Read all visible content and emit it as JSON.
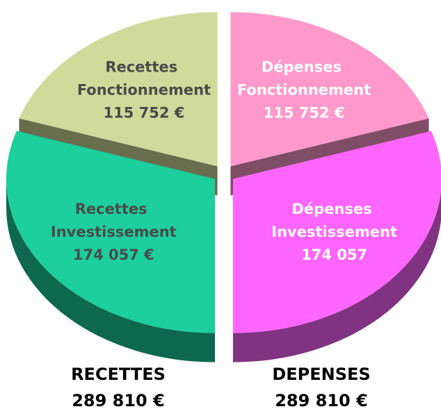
{
  "chart_data": {
    "type": "pie",
    "categories": [
      "Dépenses Fonctionnement",
      "Dépenses Investissement",
      "Recettes Investissement",
      "Recettes Fonctionnement"
    ],
    "values": [
      115752,
      174057,
      174057,
      115752
    ],
    "value_labels": [
      "115 752 €",
      "174 057",
      "174 057 €",
      "115 752 €"
    ],
    "colors": [
      "#ff99cc",
      "#ff66ff",
      "#1ccf9c",
      "#cfda9b"
    ],
    "label_colors": [
      "#ffffff",
      "#ffffff",
      "#4a4a4a",
      "#4a4a4a"
    ],
    "annotations": [
      [
        "RECETTES",
        "289 810 €"
      ],
      [
        "DEPENSES",
        "289 810 €"
      ]
    ]
  }
}
